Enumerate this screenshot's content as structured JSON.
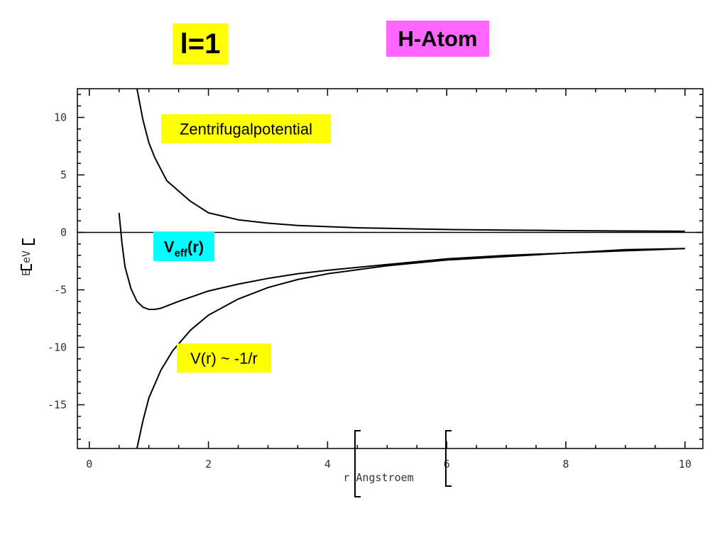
{
  "badges": {
    "l_value": {
      "text": "l=1",
      "color": "#ffff00"
    },
    "title": {
      "text": "H-Atom",
      "color": "#ff66ff"
    }
  },
  "chart_data": {
    "type": "line",
    "title": "",
    "xlabel": "r Angstroem",
    "ylabel": "E eV",
    "xlim": [
      -0.2,
      10.3
    ],
    "ylim": [
      -18.8,
      12.5
    ],
    "x_ticks": [
      0,
      2,
      4,
      6,
      8,
      10
    ],
    "y_ticks": [
      10,
      5,
      0,
      -5,
      -10,
      -15
    ],
    "grid": false,
    "series": [
      {
        "name": "Zentrifugalpotential",
        "x": [
          0.8,
          0.9,
          1.0,
          1.1,
          1.3,
          1.5,
          1.7,
          2.0,
          2.5,
          3.0,
          3.5,
          4.0,
          4.5,
          5.0,
          5.5,
          6.0,
          7.0,
          8.0,
          9.0,
          10.0
        ],
        "values": [
          12.5,
          9.8,
          7.8,
          6.5,
          4.5,
          3.6,
          2.7,
          1.7,
          1.1,
          0.8,
          0.6,
          0.5,
          0.4,
          0.35,
          0.3,
          0.25,
          0.2,
          0.15,
          0.12,
          0.1
        ]
      },
      {
        "name": "V(r) ~ -1/r",
        "x": [
          0.8,
          0.9,
          1.0,
          1.2,
          1.4,
          1.7,
          2.0,
          2.5,
          3.0,
          3.5,
          4.0,
          5.0,
          6.0,
          7.0,
          8.0,
          9.0,
          10.0
        ],
        "values": [
          -18.8,
          -16.4,
          -14.4,
          -12.0,
          -10.3,
          -8.5,
          -7.2,
          -5.8,
          -4.8,
          -4.1,
          -3.6,
          -2.9,
          -2.4,
          -2.1,
          -1.8,
          -1.6,
          -1.4
        ]
      },
      {
        "name": "Veff(r)",
        "x": [
          0.5,
          0.55,
          0.6,
          0.7,
          0.8,
          0.9,
          1.0,
          1.1,
          1.2,
          1.5,
          2.0,
          2.5,
          3.0,
          3.5,
          4.0,
          5.0,
          6.0,
          7.0,
          8.0,
          9.0,
          10.0
        ],
        "values": [
          1.7,
          -1.0,
          -3.0,
          -4.9,
          -6.0,
          -6.5,
          -6.7,
          -6.7,
          -6.6,
          -6.0,
          -5.1,
          -4.5,
          -4.0,
          -3.6,
          -3.3,
          -2.8,
          -2.3,
          -2.0,
          -1.8,
          -1.5,
          -1.4
        ]
      }
    ],
    "annotations": [
      {
        "id": "zentrifugal",
        "text": "Zentrifugalpotential",
        "color": "#ffff00"
      },
      {
        "id": "veff",
        "text_main": "V",
        "text_sub": "eff",
        "text_tail": "(r)",
        "color": "#00ffff"
      },
      {
        "id": "coulomb",
        "text": "V(r) ~ -1/r",
        "color": "#ffff00"
      }
    ]
  }
}
